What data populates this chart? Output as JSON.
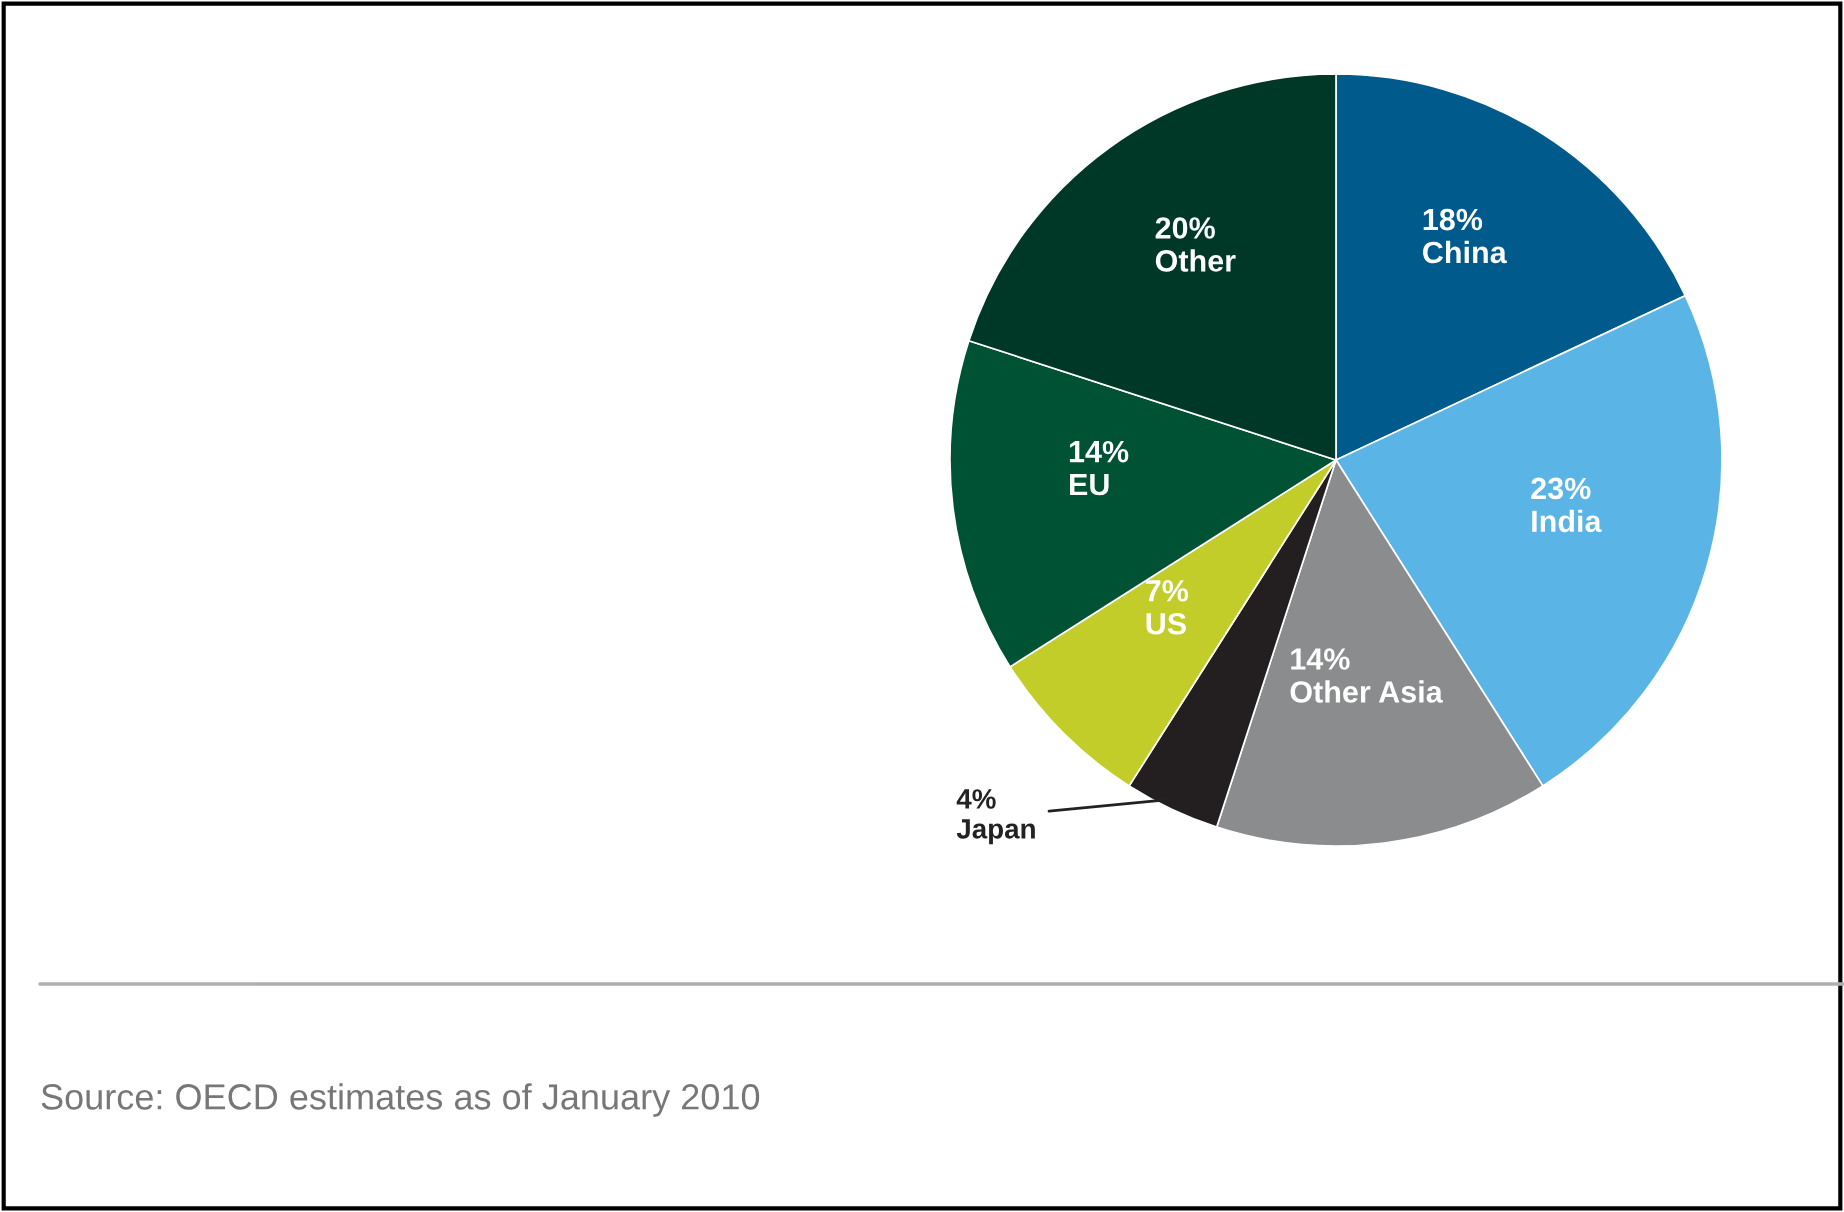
{
  "chart_data": {
    "type": "pie",
    "categories": [
      "China",
      "India",
      "Other Asia",
      "Japan",
      "US",
      "EU",
      "Other"
    ],
    "values": [
      18,
      23,
      14,
      4,
      7,
      14,
      20
    ],
    "value_labels": [
      "18%",
      "23%",
      "14%",
      "4%",
      "7%",
      "14%",
      "20%"
    ],
    "colors": [
      "#005a8c",
      "#5ab4e5",
      "#8a8c8e",
      "#231f20",
      "#c2cd2a",
      "#005234",
      "#003828"
    ],
    "annotations": [
      "Source: OECD estimates as of January 2010"
    ]
  }
}
